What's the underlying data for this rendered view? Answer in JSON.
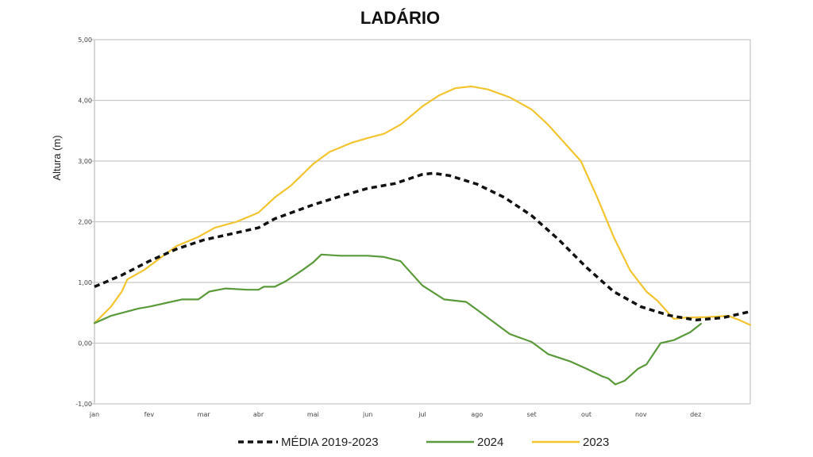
{
  "chart_data": {
    "type": "line",
    "title": "LADÁRIO",
    "xlabel": "",
    "ylabel": "Altura (m)",
    "ylim": [
      -1.0,
      5.0
    ],
    "xlim": [
      0,
      12
    ],
    "x_unit": "month index (0 = start of jan)",
    "y_ticks": [
      "-1,00",
      "0,00",
      "1,00",
      "2,00",
      "3,00",
      "4,00",
      "5,00"
    ],
    "y_tick_values": [
      -1,
      0,
      1,
      2,
      3,
      4,
      5
    ],
    "x_ticks": [
      "jan",
      "fev",
      "mar",
      "abr",
      "mai",
      "jun",
      "jul",
      "ago",
      "set",
      "out",
      "nov",
      "dez"
    ],
    "grid": true,
    "legend_position": "bottom",
    "series": [
      {
        "name": "MÉDIA 2019-2023",
        "color": "#111111",
        "style": "dashed",
        "points": [
          [
            0,
            0.93
          ],
          [
            0.5,
            1.12
          ],
          [
            1,
            1.35
          ],
          [
            1.5,
            1.55
          ],
          [
            2,
            1.7
          ],
          [
            2.5,
            1.8
          ],
          [
            3,
            1.9
          ],
          [
            3.3,
            2.05
          ],
          [
            4,
            2.28
          ],
          [
            4.5,
            2.42
          ],
          [
            5,
            2.55
          ],
          [
            5.5,
            2.63
          ],
          [
            5.8,
            2.72
          ],
          [
            6,
            2.78
          ],
          [
            6.2,
            2.8
          ],
          [
            6.5,
            2.76
          ],
          [
            7,
            2.62
          ],
          [
            7.5,
            2.4
          ],
          [
            8,
            2.1
          ],
          [
            8.5,
            1.7
          ],
          [
            9,
            1.25
          ],
          [
            9.5,
            0.85
          ],
          [
            10,
            0.6
          ],
          [
            10.5,
            0.46
          ],
          [
            11,
            0.38
          ],
          [
            11.5,
            0.42
          ],
          [
            12,
            0.52
          ]
        ]
      },
      {
        "name": "2024",
        "color": "#5a9a3a",
        "style": "solid",
        "points": [
          [
            0,
            0.33
          ],
          [
            0.3,
            0.45
          ],
          [
            0.8,
            0.57
          ],
          [
            1,
            0.6
          ],
          [
            1.3,
            0.66
          ],
          [
            1.6,
            0.72
          ],
          [
            1.9,
            0.72
          ],
          [
            2.1,
            0.85
          ],
          [
            2.4,
            0.9
          ],
          [
            2.8,
            0.88
          ],
          [
            3.0,
            0.88
          ],
          [
            3.1,
            0.93
          ],
          [
            3.3,
            0.93
          ],
          [
            3.5,
            1.02
          ],
          [
            3.8,
            1.2
          ],
          [
            4.0,
            1.33
          ],
          [
            4.15,
            1.46
          ],
          [
            4.5,
            1.44
          ],
          [
            5.0,
            1.44
          ],
          [
            5.3,
            1.42
          ],
          [
            5.6,
            1.35
          ],
          [
            6.0,
            0.95
          ],
          [
            6.4,
            0.72
          ],
          [
            6.8,
            0.68
          ],
          [
            7.0,
            0.55
          ],
          [
            7.3,
            0.35
          ],
          [
            7.6,
            0.15
          ],
          [
            8.0,
            0.02
          ],
          [
            8.3,
            -0.18
          ],
          [
            8.7,
            -0.3
          ],
          [
            9.0,
            -0.42
          ],
          [
            9.3,
            -0.55
          ],
          [
            9.4,
            -0.58
          ],
          [
            9.53,
            -0.68
          ],
          [
            9.7,
            -0.62
          ],
          [
            9.95,
            -0.42
          ],
          [
            10.1,
            -0.35
          ],
          [
            10.36,
            0.0
          ],
          [
            10.6,
            0.05
          ],
          [
            10.9,
            0.18
          ],
          [
            11.1,
            0.32
          ]
        ]
      },
      {
        "name": "2023",
        "color": "#f2c530",
        "style": "solid",
        "points": [
          [
            0,
            0.33
          ],
          [
            0.3,
            0.6
          ],
          [
            0.5,
            0.85
          ],
          [
            0.6,
            1.05
          ],
          [
            0.9,
            1.2
          ],
          [
            1.2,
            1.4
          ],
          [
            1.5,
            1.6
          ],
          [
            1.9,
            1.75
          ],
          [
            2.2,
            1.9
          ],
          [
            2.6,
            2.0
          ],
          [
            3.0,
            2.15
          ],
          [
            3.3,
            2.4
          ],
          [
            3.6,
            2.6
          ],
          [
            4.0,
            2.95
          ],
          [
            4.3,
            3.15
          ],
          [
            4.7,
            3.3
          ],
          [
            5.0,
            3.38
          ],
          [
            5.3,
            3.45
          ],
          [
            5.6,
            3.6
          ],
          [
            6.0,
            3.9
          ],
          [
            6.3,
            4.08
          ],
          [
            6.6,
            4.2
          ],
          [
            6.9,
            4.23
          ],
          [
            7.2,
            4.18
          ],
          [
            7.6,
            4.05
          ],
          [
            8.0,
            3.85
          ],
          [
            8.3,
            3.6
          ],
          [
            8.6,
            3.3
          ],
          [
            8.9,
            3.0
          ],
          [
            9.2,
            2.4
          ],
          [
            9.5,
            1.75
          ],
          [
            9.8,
            1.2
          ],
          [
            10.1,
            0.85
          ],
          [
            10.3,
            0.7
          ],
          [
            10.6,
            0.4
          ],
          [
            10.8,
            0.42
          ],
          [
            11.2,
            0.43
          ],
          [
            11.6,
            0.45
          ],
          [
            11.8,
            0.38
          ],
          [
            12,
            0.3
          ]
        ]
      }
    ]
  }
}
